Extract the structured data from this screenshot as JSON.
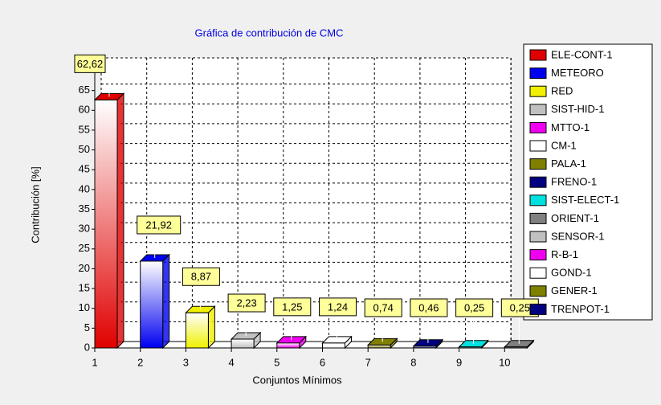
{
  "chart_data": {
    "type": "bar3d",
    "title": "Gráfica de contribución de CMC",
    "y_label": "Contribución [%]",
    "x_label": "Conjuntos Mínimos",
    "categories": [
      "1",
      "2",
      "3",
      "4",
      "5",
      "6",
      "7",
      "8",
      "9",
      "10"
    ],
    "values": [
      62.62,
      21.92,
      8.87,
      2.23,
      1.25,
      1.24,
      0.74,
      0.46,
      0.25,
      0.25
    ],
    "value_labels": [
      "62,62",
      "21,92",
      "8,87",
      "2,23",
      "1,25",
      "1,24",
      "0,74",
      "0,46",
      "0,25",
      "0,25"
    ],
    "ylim": [
      0,
      70
    ],
    "yticks": [
      0,
      5,
      10,
      15,
      20,
      25,
      30,
      35,
      40,
      45,
      50,
      55,
      60,
      65
    ],
    "grid": true,
    "legend": [
      {
        "name": "ELE-CONT-1",
        "color": "#e00000"
      },
      {
        "name": "METEORO",
        "color": "#0000f0"
      },
      {
        "name": "RED",
        "color": "#f0f000"
      },
      {
        "name": "SIST-HID-1",
        "color": "#c0c0c0"
      },
      {
        "name": "MTTO-1",
        "color": "#f000f0"
      },
      {
        "name": "CM-1",
        "color": "#ffffff"
      },
      {
        "name": "PALA-1",
        "color": "#808000"
      },
      {
        "name": "FRENO-1",
        "color": "#000080"
      },
      {
        "name": "SIST-ELECT-1",
        "color": "#00e0e0"
      },
      {
        "name": "ORIENT-1",
        "color": "#808080"
      },
      {
        "name": "SENSOR-1",
        "color": "#c0c0c0"
      },
      {
        "name": "R-B-1",
        "color": "#f000f0"
      },
      {
        "name": "GOND-1",
        "color": "#ffffff"
      },
      {
        "name": "GENER-1",
        "color": "#808000"
      },
      {
        "name": "TRENPOT-1",
        "color": "#000080"
      }
    ]
  }
}
